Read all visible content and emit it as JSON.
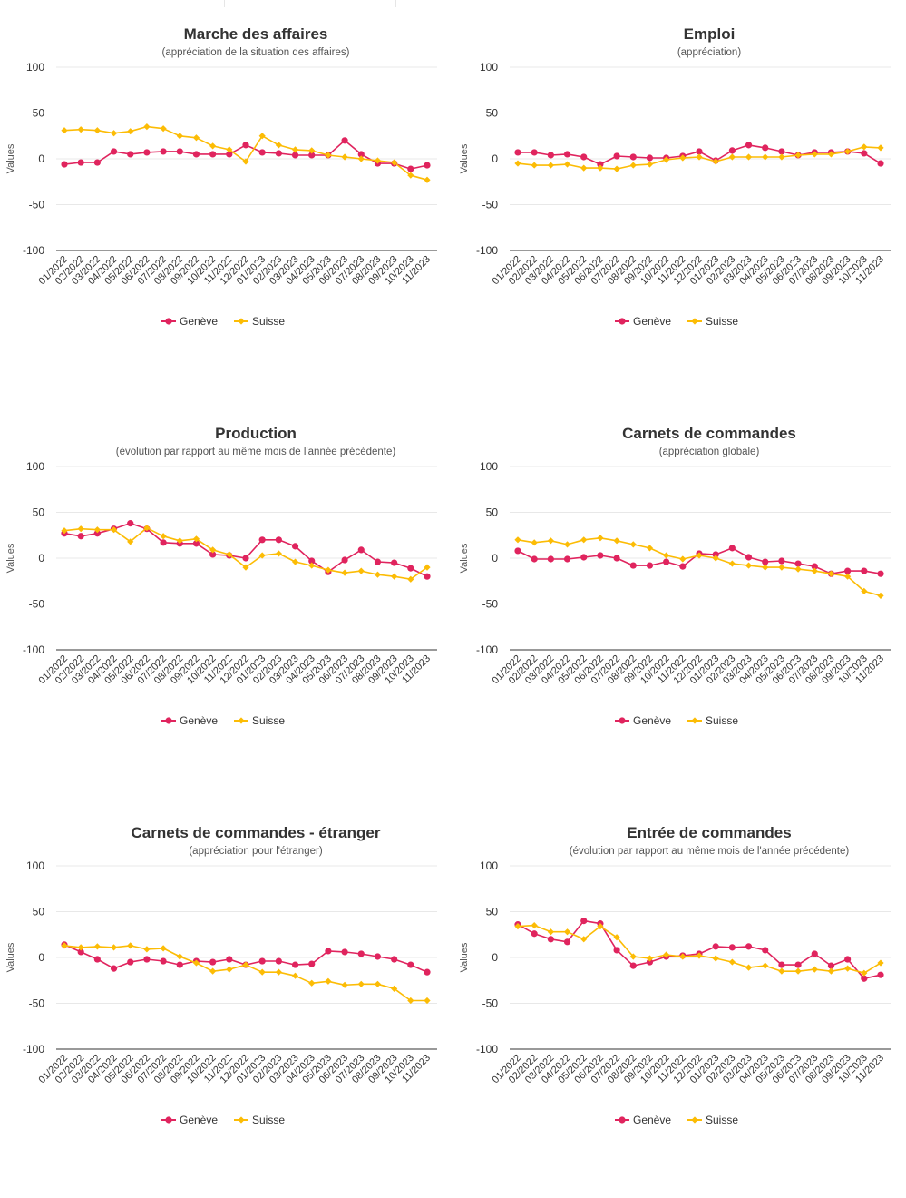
{
  "colors": {
    "geneve": "#e0245e",
    "suisse": "#fcbc05",
    "grid": "#e8e8e8",
    "axis": "#333333"
  },
  "x_labels": [
    "01/2022",
    "02/2022",
    "03/2022",
    "04/2022",
    "05/2022",
    "06/2022",
    "07/2022",
    "08/2022",
    "09/2022",
    "10/2022",
    "11/2022",
    "12/2022",
    "01/2023",
    "02/2023",
    "03/2023",
    "04/2023",
    "05/2023",
    "06/2023",
    "07/2023",
    "08/2023",
    "09/2023",
    "10/2023",
    "11/2023"
  ],
  "y_label": "Values",
  "chart_data": [
    {
      "type": "line",
      "title": "Marche des affaires",
      "subtitle": "(appréciation de la situation des affaires)",
      "ylabel": "Values",
      "ylim": [
        -100,
        100
      ],
      "yticks": [
        100,
        50,
        0,
        -50,
        -100
      ],
      "grid": true,
      "legend": "bottom-center",
      "series": [
        {
          "name": "Genève",
          "values": [
            -6,
            -4,
            -4,
            8,
            5,
            7,
            8,
            8,
            5,
            5,
            5,
            15,
            7,
            6,
            4,
            4,
            4,
            20,
            5,
            -5,
            -5,
            -11,
            -7
          ]
        },
        {
          "name": "Suisse",
          "values": [
            31,
            32,
            31,
            28,
            30,
            35,
            33,
            25,
            23,
            14,
            10,
            -3,
            25,
            15,
            10,
            9,
            4,
            2,
            0,
            -2,
            -4,
            -18,
            -23
          ]
        }
      ]
    },
    {
      "type": "line",
      "title": "Emploi",
      "subtitle": "(appréciation)",
      "ylabel": "Values",
      "ylim": [
        -100,
        100
      ],
      "yticks": [
        100,
        50,
        0,
        -50,
        -100
      ],
      "grid": true,
      "legend": "bottom-center",
      "series": [
        {
          "name": "Genève",
          "values": [
            7,
            7,
            4,
            5,
            2,
            -6,
            3,
            2,
            1,
            1,
            3,
            8,
            -2,
            9,
            15,
            12,
            8,
            4,
            7,
            7,
            8,
            6,
            -5
          ]
        },
        {
          "name": "Suisse",
          "values": [
            -5,
            -7,
            -7,
            -6,
            -10,
            -10,
            -11,
            -7,
            -6,
            -1,
            1,
            2,
            -3,
            2,
            2,
            2,
            2,
            4,
            5,
            5,
            8,
            13,
            12
          ]
        }
      ]
    },
    {
      "type": "line",
      "title": "Production",
      "subtitle": "(évolution par rapport au même mois de l'année précédente)",
      "ylabel": "Values",
      "ylim": [
        -100,
        100
      ],
      "yticks": [
        100,
        50,
        0,
        -50,
        -100
      ],
      "grid": true,
      "legend": "bottom-center",
      "series": [
        {
          "name": "Genève",
          "values": [
            27,
            24,
            27,
            32,
            38,
            32,
            17,
            16,
            16,
            4,
            3,
            0,
            20,
            20,
            13,
            -3,
            -15,
            -2,
            9,
            -4,
            -5,
            -11,
            -20
          ]
        },
        {
          "name": "Suisse",
          "values": [
            30,
            32,
            31,
            31,
            18,
            33,
            24,
            19,
            21,
            9,
            4,
            -10,
            3,
            5,
            -4,
            -8,
            -13,
            -16,
            -14,
            -18,
            -20,
            -23,
            -10
          ]
        }
      ]
    },
    {
      "type": "line",
      "title": "Carnets de commandes",
      "subtitle": "(appréciation globale)",
      "ylabel": "Values",
      "ylim": [
        -100,
        100
      ],
      "yticks": [
        100,
        50,
        0,
        -50,
        -100
      ],
      "grid": true,
      "legend": "bottom-center",
      "series": [
        {
          "name": "Genève",
          "values": [
            8,
            -1,
            -1,
            -1,
            1,
            3,
            0,
            -8,
            -8,
            -4,
            -9,
            5,
            4,
            11,
            1,
            -4,
            -3,
            -6,
            -9,
            -17,
            -14,
            -14,
            -17
          ]
        },
        {
          "name": "Suisse",
          "values": [
            20,
            17,
            19,
            15,
            20,
            22,
            19,
            15,
            11,
            3,
            -1,
            3,
            0,
            -6,
            -8,
            -10,
            -10,
            -12,
            -14,
            -17,
            -20,
            -36,
            -41
          ]
        }
      ]
    },
    {
      "type": "line",
      "title": "Carnets de commandes - étranger",
      "subtitle": "(appréciation pour l'étranger)",
      "ylabel": "Values",
      "ylim": [
        -100,
        100
      ],
      "yticks": [
        100,
        50,
        0,
        -50,
        -100
      ],
      "grid": true,
      "legend": "bottom-center",
      "series": [
        {
          "name": "Genève",
          "values": [
            14,
            6,
            -2,
            -12,
            -5,
            -2,
            -4,
            -8,
            -4,
            -5,
            -2,
            -8,
            -4,
            -4,
            -8,
            -7,
            7,
            6,
            4,
            1,
            -2,
            -8,
            -16
          ]
        },
        {
          "name": "Suisse",
          "values": [
            13,
            11,
            12,
            11,
            13,
            9,
            10,
            1,
            -6,
            -15,
            -13,
            -8,
            -16,
            -16,
            -20,
            -28,
            -26,
            -30,
            -29,
            -29,
            -34,
            -47,
            -47
          ]
        }
      ]
    },
    {
      "type": "line",
      "title": "Entrée de commandes",
      "subtitle": "(évolution par rapport au même mois de l'année précédente)",
      "ylabel": "Values",
      "ylim": [
        -100,
        100
      ],
      "yticks": [
        100,
        50,
        0,
        -50,
        -100
      ],
      "grid": true,
      "legend": "bottom-center",
      "series": [
        {
          "name": "Genève",
          "values": [
            36,
            26,
            20,
            17,
            40,
            37,
            8,
            -9,
            -5,
            1,
            2,
            4,
            12,
            11,
            12,
            8,
            -8,
            -8,
            4,
            -9,
            -2,
            -23,
            -19
          ]
        },
        {
          "name": "Suisse",
          "values": [
            34,
            35,
            28,
            28,
            20,
            34,
            22,
            1,
            -1,
            3,
            1,
            2,
            -1,
            -5,
            -11,
            -9,
            -15,
            -15,
            -13,
            -15,
            -12,
            -17,
            -6
          ]
        }
      ]
    }
  ]
}
